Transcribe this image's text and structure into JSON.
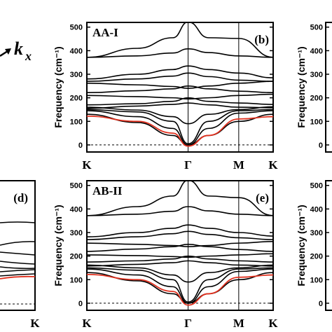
{
  "kx_label": {
    "main": "k",
    "sub": "x"
  },
  "chart_data": [
    {
      "type": "line",
      "panel": "(b)",
      "name": "AA-I",
      "ylabel": "Frequency (cm⁻¹)",
      "ylim": [
        -30,
        520
      ],
      "yticks": [
        0,
        100,
        200,
        300,
        400,
        500
      ],
      "xticks": [
        "K",
        "Γ",
        "M",
        "K"
      ],
      "x_positions": [
        0,
        1,
        1.5,
        1.84
      ],
      "zero_line": "dashed",
      "bands": [
        [
          372,
          410,
          455,
          522,
          455,
          452,
          372
        ],
        [
          372,
          378,
          390,
          408,
          392,
          378,
          372
        ],
        [
          280,
          300,
          320,
          335,
          320,
          305,
          285
        ],
        [
          270,
          280,
          292,
          305,
          290,
          275,
          270
        ],
        [
          262,
          255,
          248,
          240,
          250,
          262,
          270
        ],
        [
          222,
          230,
          238,
          250,
          238,
          228,
          222
        ],
        [
          210,
          205,
          200,
          195,
          200,
          210,
          215
        ],
        [
          170,
          175,
          185,
          200,
          185,
          178,
          172
        ],
        [
          155,
          165,
          172,
          178,
          170,
          160,
          158
        ],
        [
          160,
          148,
          120,
          90,
          130,
          150,
          162
        ],
        [
          150,
          140,
          100,
          5,
          100,
          145,
          150
        ],
        [
          145,
          120,
          70,
          0,
          70,
          135,
          145
        ],
        [
          130,
          95,
          40,
          0,
          40,
          100,
          130
        ]
      ],
      "red_band": [
        122,
        100,
        50,
        -5,
        40,
        110,
        120
      ]
    },
    {
      "type": "line",
      "panel": "(e)",
      "name": "AB-II",
      "ylabel": "Frequency (cm⁻¹)",
      "ylim": [
        -30,
        520
      ],
      "yticks": [
        0,
        100,
        200,
        300,
        400,
        500
      ],
      "xticks": [
        "K",
        "Γ",
        "M",
        "K"
      ],
      "x_positions": [
        0,
        1,
        1.5,
        1.84
      ],
      "zero_line": "dashed",
      "bands": [
        [
          372,
          410,
          455,
          522,
          455,
          448,
          372
        ],
        [
          372,
          378,
          390,
          410,
          392,
          378,
          372
        ],
        [
          282,
          300,
          318,
          332,
          318,
          300,
          285
        ],
        [
          270,
          282,
          295,
          305,
          292,
          278,
          270
        ],
        [
          255,
          250,
          245,
          240,
          245,
          255,
          262
        ],
        [
          220,
          230,
          240,
          250,
          240,
          228,
          220
        ],
        [
          205,
          202,
          198,
          195,
          200,
          205,
          210
        ],
        [
          175,
          180,
          188,
          200,
          188,
          180,
          175
        ],
        [
          158,
          165,
          172,
          180,
          172,
          162,
          158
        ],
        [
          162,
          150,
          120,
          90,
          130,
          150,
          162
        ],
        [
          150,
          140,
          100,
          5,
          100,
          145,
          150
        ],
        [
          145,
          120,
          70,
          0,
          70,
          135,
          145
        ],
        [
          130,
          95,
          40,
          0,
          40,
          100,
          130
        ]
      ],
      "red_band": [
        122,
        100,
        50,
        -8,
        40,
        110,
        120
      ]
    },
    {
      "type": "line",
      "panel": "(d)",
      "name": "",
      "xticks": [
        "K"
      ],
      "partial": "right edge visible"
    },
    {
      "type": "line",
      "panel": "",
      "name": "",
      "ylabel": "Frequency (cm⁻¹)",
      "yticks": [
        0,
        100,
        200,
        300,
        400,
        500
      ],
      "partial": "left edge visible"
    }
  ]
}
